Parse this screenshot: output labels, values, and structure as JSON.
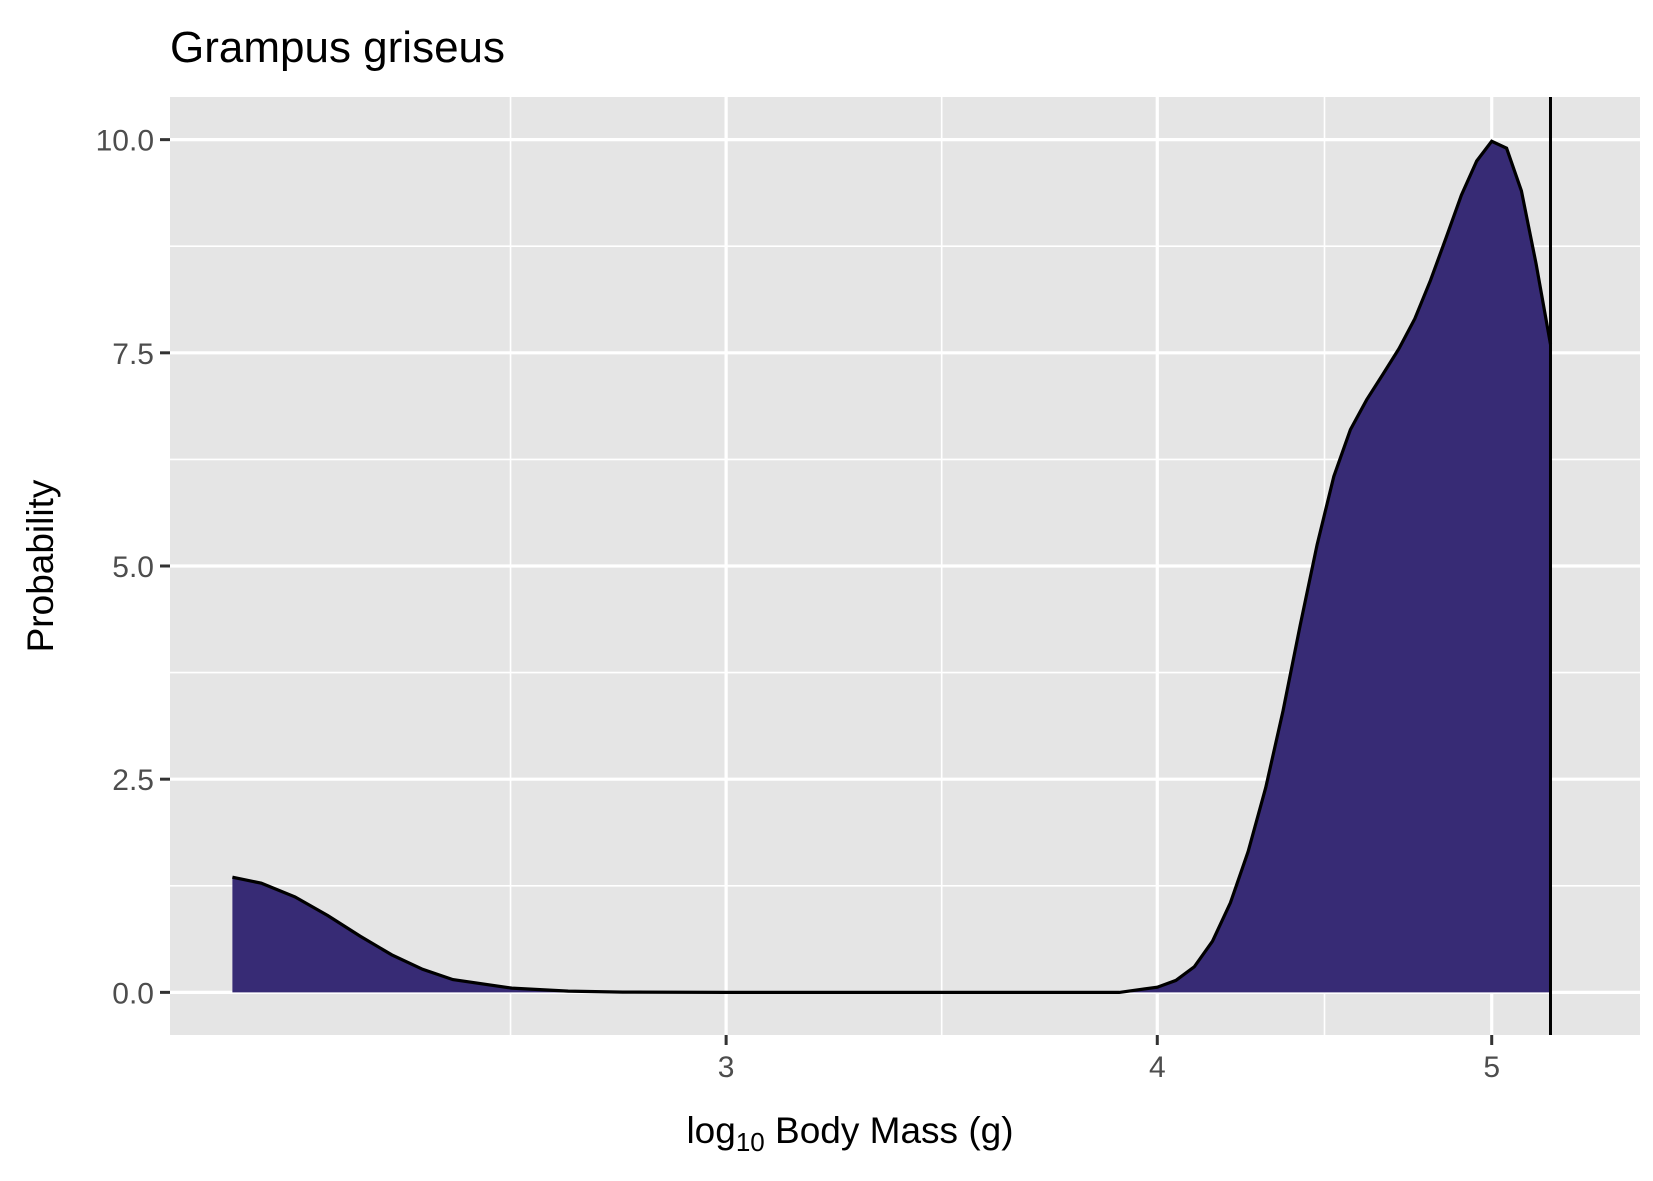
{
  "chart_data": {
    "type": "area",
    "title": "Grampus griseus",
    "xlabel": {
      "prefix": "log",
      "subscript": "10",
      "suffix": " Body Mass (g)"
    },
    "ylabel": "Probability",
    "x_scale": "log10",
    "xlim": [
      2.07,
      5.52
    ],
    "ylim": [
      -0.5,
      10.5
    ],
    "x_ticks": [
      {
        "value": 3,
        "label": "3"
      },
      {
        "value": 4,
        "label": "4"
      },
      {
        "value": 5,
        "label": "5"
      }
    ],
    "y_ticks": [
      {
        "value": 0,
        "label": "0.0"
      },
      {
        "value": 2.5,
        "label": "2.5"
      },
      {
        "value": 5,
        "label": "5.0"
      },
      {
        "value": 7.5,
        "label": "7.5"
      },
      {
        "value": 10,
        "label": "10.0"
      }
    ],
    "grid": true,
    "legend": "none",
    "series": [
      {
        "color": "#372b75",
        "points": [
          [
            2.158,
            1.35
          ],
          [
            2.2,
            1.28
          ],
          [
            2.25,
            1.12
          ],
          [
            2.3,
            0.9
          ],
          [
            2.35,
            0.66
          ],
          [
            2.4,
            0.44
          ],
          [
            2.45,
            0.27
          ],
          [
            2.5,
            0.15
          ],
          [
            2.6,
            0.05
          ],
          [
            2.7,
            0.015
          ],
          [
            2.8,
            0.003
          ],
          [
            3.0,
            0.0
          ],
          [
            3.5,
            0.0
          ],
          [
            3.9,
            0.0
          ],
          [
            4.0,
            0.06
          ],
          [
            4.05,
            0.14
          ],
          [
            4.1,
            0.3
          ],
          [
            4.15,
            0.6
          ],
          [
            4.2,
            1.05
          ],
          [
            4.25,
            1.65
          ],
          [
            4.3,
            2.4
          ],
          [
            4.35,
            3.3
          ],
          [
            4.4,
            4.3
          ],
          [
            4.45,
            5.25
          ],
          [
            4.5,
            6.05
          ],
          [
            4.55,
            6.6
          ],
          [
            4.6,
            6.95
          ],
          [
            4.65,
            7.25
          ],
          [
            4.7,
            7.55
          ],
          [
            4.75,
            7.9
          ],
          [
            4.8,
            8.35
          ],
          [
            4.85,
            8.85
          ],
          [
            4.9,
            9.35
          ],
          [
            4.95,
            9.75
          ],
          [
            5.0,
            9.98
          ],
          [
            5.05,
            9.9
          ],
          [
            5.1,
            9.4
          ],
          [
            5.15,
            8.55
          ],
          [
            5.2,
            7.6
          ]
        ]
      }
    ],
    "reference_line": {
      "x": 5.2,
      "color": "#000000"
    }
  }
}
